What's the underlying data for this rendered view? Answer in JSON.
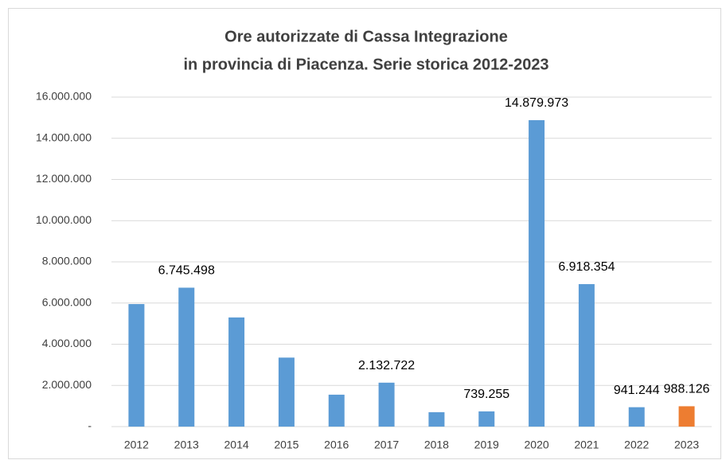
{
  "chart_data": {
    "type": "bar",
    "title": [
      "Ore autorizzate di Cassa Integrazione",
      "in provincia di Piacenza. Serie storica 2012-2023"
    ],
    "categories": [
      "2012",
      "2013",
      "2014",
      "2015",
      "2016",
      "2017",
      "2018",
      "2019",
      "2020",
      "2021",
      "2022",
      "2023"
    ],
    "values": [
      5950000,
      6745498,
      5300000,
      3350000,
      1550000,
      2132722,
      700000,
      739255,
      14879973,
      6918354,
      941244,
      988126
    ],
    "value_labels": [
      null,
      "6.745.498",
      null,
      null,
      null,
      "2.132.722",
      null,
      "739.255",
      "14.879.973",
      "6.918.354",
      "941.244",
      "988.126"
    ],
    "colors": [
      "#5b9bd5",
      "#5b9bd5",
      "#5b9bd5",
      "#5b9bd5",
      "#5b9bd5",
      "#5b9bd5",
      "#5b9bd5",
      "#5b9bd5",
      "#5b9bd5",
      "#5b9bd5",
      "#5b9bd5",
      "#ed7d31"
    ],
    "ylim": [
      0,
      16000000
    ],
    "yticks": [
      {
        "value": 0,
        "label": "-"
      },
      {
        "value": 2000000,
        "label": "2.000.000"
      },
      {
        "value": 4000000,
        "label": "4.000.000"
      },
      {
        "value": 6000000,
        "label": "6.000.000"
      },
      {
        "value": 8000000,
        "label": "8.000.000"
      },
      {
        "value": 10000000,
        "label": "10.000.000"
      },
      {
        "value": 12000000,
        "label": "12.000.000"
      },
      {
        "value": 14000000,
        "label": "14.000.000"
      },
      {
        "value": 16000000,
        "label": "16.000.000"
      }
    ],
    "grid": true
  }
}
